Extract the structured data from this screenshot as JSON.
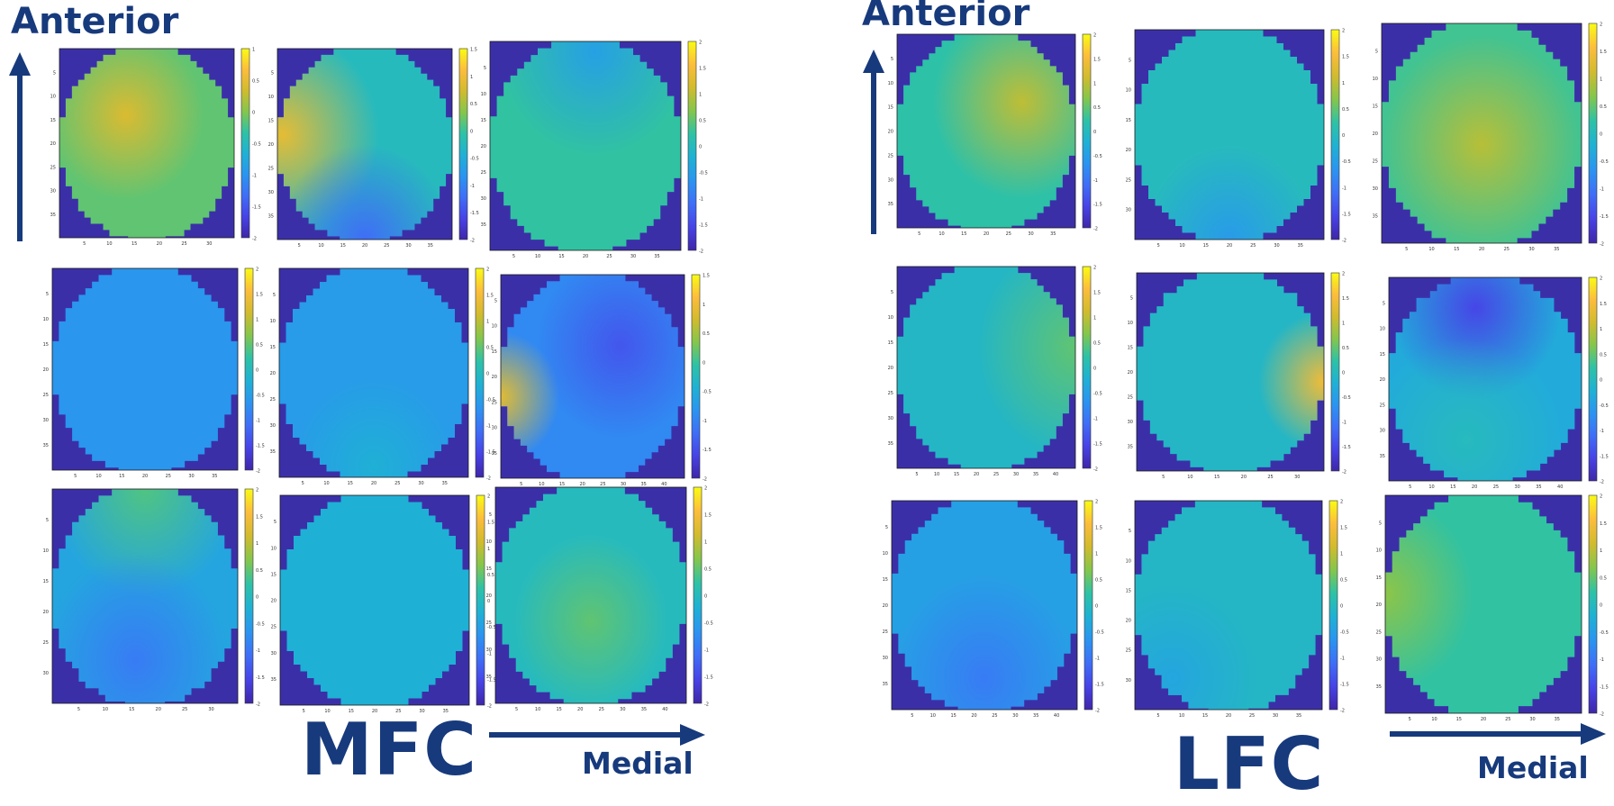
{
  "panels": [
    {
      "name": "MFC",
      "label": "MFC",
      "anterior_label": "Anterior",
      "medial_label": "Medial",
      "maps": [
        {
          "id": "mfc-r1c1",
          "colorbar_ticks": [
            "1",
            "0.5",
            "0",
            "-0.5",
            "-1",
            "-1.5",
            "-2"
          ],
          "base": 0.62,
          "blobs": [
            {
              "x": 0.38,
              "y": 0.35,
              "r": 0.45,
              "v": 0.18
            }
          ],
          "x_ticks": [
            "5",
            "10",
            "15",
            "20",
            "25",
            "30"
          ],
          "y_ticks": [
            "5",
            "10",
            "15",
            "20",
            "25",
            "30",
            "35"
          ]
        },
        {
          "id": "mfc-r1c2",
          "colorbar_ticks": [
            "1.5",
            "1",
            "0.5",
            "0",
            "-0.5",
            "-1",
            "-1.5",
            "-2"
          ],
          "base": 0.5,
          "blobs": [
            {
              "x": 0.03,
              "y": 0.45,
              "r": 0.55,
              "v": 0.33
            },
            {
              "x": 0.5,
              "y": 1.0,
              "r": 0.5,
              "v": -0.28
            }
          ],
          "x_ticks": [
            "5",
            "10",
            "15",
            "20",
            "25",
            "30",
            "35"
          ],
          "y_ticks": [
            "5",
            "10",
            "15",
            "20",
            "25",
            "30",
            "35"
          ]
        },
        {
          "id": "mfc-r1c3",
          "colorbar_ticks": [
            "2",
            "1.5",
            "1",
            "0.5",
            "0",
            "-0.5",
            "-1",
            "-1.5",
            "-2"
          ],
          "base": 0.56,
          "blobs": [
            {
              "x": 0.55,
              "y": 0.05,
              "r": 0.5,
              "v": -0.18
            }
          ],
          "x_ticks": [
            "5",
            "10",
            "15",
            "20",
            "25",
            "30",
            "35"
          ],
          "y_ticks": [
            "5",
            "10",
            "15",
            "20",
            "25",
            "30",
            "35"
          ]
        },
        {
          "id": "mfc-r2c1",
          "colorbar_ticks": [
            "2",
            "1.5",
            "1",
            "0.5",
            "0",
            "-0.5",
            "-1",
            "-1.5",
            "-2"
          ],
          "base": 0.34,
          "blobs": [],
          "x_ticks": [
            "5",
            "10",
            "15",
            "20",
            "25",
            "30",
            "35"
          ],
          "y_ticks": [
            "5",
            "10",
            "15",
            "20",
            "25",
            "30",
            "35"
          ]
        },
        {
          "id": "mfc-r2c2",
          "colorbar_ticks": [
            "2",
            "1.5",
            "1",
            "0.5",
            "0",
            "-0.5",
            "-1",
            "-1.5",
            "-2"
          ],
          "base": 0.36,
          "blobs": [
            {
              "x": 0.5,
              "y": 0.95,
              "r": 0.45,
              "v": 0.08
            }
          ],
          "x_ticks": [
            "5",
            "10",
            "15",
            "20",
            "25",
            "30",
            "35"
          ],
          "y_ticks": [
            "5",
            "10",
            "15",
            "20",
            "25",
            "30",
            "35"
          ]
        },
        {
          "id": "mfc-r2c3",
          "colorbar_ticks": [
            "1.5",
            "1",
            "0.5",
            "0",
            "-0.5",
            "-1",
            "-1.5",
            "-2"
          ],
          "base": 0.3,
          "blobs": [
            {
              "x": 0.0,
              "y": 0.6,
              "r": 0.32,
              "v": 0.52
            },
            {
              "x": 0.65,
              "y": 0.35,
              "r": 0.45,
              "v": -0.14
            }
          ],
          "x_ticks": [
            "5",
            "10",
            "15",
            "20",
            "25",
            "30",
            "35",
            "40"
          ],
          "y_ticks": [
            "5",
            "10",
            "15",
            "20",
            "25",
            "30",
            "35"
          ]
        },
        {
          "id": "mfc-r3c1",
          "colorbar_ticks": [
            "2",
            "1.5",
            "1",
            "0.5",
            "0",
            "-0.5",
            "-1",
            "-1.5",
            "-2"
          ],
          "base": 0.4,
          "blobs": [
            {
              "x": 0.5,
              "y": 0.0,
              "r": 0.5,
              "v": 0.2
            },
            {
              "x": 0.45,
              "y": 0.8,
              "r": 0.5,
              "v": -0.14
            }
          ],
          "x_ticks": [
            "5",
            "10",
            "15",
            "20",
            "25",
            "30"
          ],
          "y_ticks": [
            "5",
            "10",
            "15",
            "20",
            "25",
            "30"
          ]
        },
        {
          "id": "mfc-r3c2",
          "colorbar_ticks": [
            "2",
            "1.5",
            "1",
            "0.5",
            "0",
            "-0.5",
            "-1",
            "-1.5",
            "-2"
          ],
          "base": 0.44,
          "blobs": [],
          "x_ticks": [
            "5",
            "10",
            "15",
            "20",
            "25",
            "30",
            "35"
          ],
          "y_ticks": [
            "5",
            "10",
            "15",
            "20",
            "25",
            "30",
            "35"
          ]
        },
        {
          "id": "mfc-r3c3",
          "colorbar_ticks": [
            "2",
            "1.5",
            "1",
            "0.5",
            "0",
            "-0.5",
            "-1",
            "-1.5",
            "-2"
          ],
          "base": 0.5,
          "blobs": [
            {
              "x": 0.5,
              "y": 0.62,
              "r": 0.4,
              "v": 0.12
            }
          ],
          "x_ticks": [
            "5",
            "10",
            "15",
            "20",
            "25",
            "30",
            "35",
            "40"
          ],
          "y_ticks": [
            "5",
            "10",
            "15",
            "20",
            "25",
            "30",
            "35"
          ]
        }
      ]
    },
    {
      "name": "LFC",
      "label": "LFC",
      "anterior_label": "Anterior",
      "medial_label": "Medial",
      "maps": [
        {
          "id": "lfc-r1c1",
          "colorbar_ticks": [
            "2",
            "1.5",
            "1",
            "0.5",
            "0",
            "-0.5",
            "-1",
            "-1.5",
            "-2"
          ],
          "base": 0.55,
          "blobs": [
            {
              "x": 0.7,
              "y": 0.35,
              "r": 0.5,
              "v": 0.2
            }
          ],
          "x_ticks": [
            "5",
            "10",
            "15",
            "20",
            "25",
            "30",
            "35"
          ],
          "y_ticks": [
            "5",
            "10",
            "15",
            "20",
            "25",
            "30",
            "35"
          ]
        },
        {
          "id": "lfc-r1c2",
          "colorbar_ticks": [
            "2",
            "1.5",
            "1",
            "0.5",
            "0",
            "-0.5",
            "-1",
            "-1.5",
            "-2"
          ],
          "base": 0.5,
          "blobs": [
            {
              "x": 0.5,
              "y": 1.0,
              "r": 0.45,
              "v": -0.14
            }
          ],
          "x_ticks": [
            "5",
            "10",
            "15",
            "20",
            "25",
            "30",
            "35"
          ],
          "y_ticks": [
            "5",
            "10",
            "15",
            "20",
            "25",
            "30"
          ]
        },
        {
          "id": "lfc-r1c3",
          "colorbar_ticks": [
            "2",
            "1.5",
            "1",
            "0.5",
            "0",
            "-0.5",
            "-1",
            "-1.5",
            "-2"
          ],
          "base": 0.58,
          "blobs": [
            {
              "x": 0.5,
              "y": 0.55,
              "r": 0.5,
              "v": 0.16
            }
          ],
          "x_ticks": [
            "5",
            "10",
            "15",
            "20",
            "25",
            "30",
            "35"
          ],
          "y_ticks": [
            "5",
            "10",
            "15",
            "20",
            "25",
            "30",
            "35"
          ]
        },
        {
          "id": "lfc-r2c1",
          "colorbar_ticks": [
            "2",
            "1.5",
            "1",
            "0.5",
            "0",
            "-0.5",
            "-1",
            "-1.5",
            "-2"
          ],
          "base": 0.48,
          "blobs": [
            {
              "x": 1.0,
              "y": 0.4,
              "r": 0.55,
              "v": 0.14
            }
          ],
          "x_ticks": [
            "5",
            "10",
            "15",
            "20",
            "25",
            "30",
            "35",
            "40"
          ],
          "y_ticks": [
            "5",
            "10",
            "15",
            "20",
            "25",
            "30",
            "35"
          ]
        },
        {
          "id": "lfc-r2c2",
          "colorbar_ticks": [
            "2",
            "1.5",
            "1",
            "0.5",
            "0",
            "-0.5",
            "-1",
            "-1.5",
            "-2"
          ],
          "base": 0.48,
          "blobs": [
            {
              "x": 1.0,
              "y": 0.55,
              "r": 0.35,
              "v": 0.38
            }
          ],
          "x_ticks": [
            "5",
            "10",
            "15",
            "20",
            "25",
            "30"
          ],
          "y_ticks": [
            "5",
            "10",
            "15",
            "20",
            "25",
            "30",
            "35"
          ]
        },
        {
          "id": "lfc-r2c3",
          "colorbar_ticks": [
            "2",
            "1.5",
            "1",
            "0.5",
            "0",
            "-0.5",
            "-1",
            "-1.5",
            "-2"
          ],
          "base": 0.42,
          "blobs": [
            {
              "x": 0.45,
              "y": 0.15,
              "r": 0.45,
              "v": -0.3
            },
            {
              "x": 0.4,
              "y": 0.8,
              "r": 0.5,
              "v": 0.08
            }
          ],
          "x_ticks": [
            "5",
            "10",
            "15",
            "20",
            "25",
            "30",
            "35",
            "40"
          ],
          "y_ticks": [
            "5",
            "10",
            "15",
            "20",
            "25",
            "30",
            "35"
          ]
        },
        {
          "id": "lfc-r3c1",
          "colorbar_ticks": [
            "2",
            "1.5",
            "1",
            "0.5",
            "0",
            "-0.5",
            "-1",
            "-1.5",
            "-2"
          ],
          "base": 0.38,
          "blobs": [
            {
              "x": 0.5,
              "y": 0.85,
              "r": 0.5,
              "v": -0.12
            }
          ],
          "x_ticks": [
            "5",
            "10",
            "15",
            "20",
            "25",
            "30",
            "35",
            "40"
          ],
          "y_ticks": [
            "5",
            "10",
            "15",
            "20",
            "25",
            "30",
            "35"
          ]
        },
        {
          "id": "lfc-r3c2",
          "colorbar_ticks": [
            "2",
            "1.5",
            "1",
            "0.5",
            "0",
            "-0.5",
            "-1",
            "-1.5",
            "-2"
          ],
          "base": 0.48,
          "blobs": [
            {
              "x": 0.2,
              "y": 0.85,
              "r": 0.45,
              "v": -0.08
            }
          ],
          "x_ticks": [
            "5",
            "10",
            "15",
            "20",
            "25",
            "30",
            "35"
          ],
          "y_ticks": [
            "5",
            "10",
            "15",
            "20",
            "25",
            "30"
          ]
        },
        {
          "id": "lfc-r3c3",
          "colorbar_ticks": [
            "2",
            "1.5",
            "1",
            "0.5",
            "0",
            "-0.5",
            "-1",
            "-1.5",
            "-2"
          ],
          "base": 0.56,
          "blobs": [
            {
              "x": 0.0,
              "y": 0.45,
              "r": 0.45,
              "v": 0.12
            }
          ],
          "x_ticks": [
            "5",
            "10",
            "15",
            "20",
            "25",
            "30",
            "35"
          ],
          "y_ticks": [
            "5",
            "10",
            "15",
            "20",
            "25",
            "30",
            "35"
          ]
        }
      ]
    }
  ],
  "colors": {
    "label": "#173a7c",
    "outside_mask": "#3b2fa8",
    "colormap": [
      "#3e26a8",
      "#4743e6",
      "#3f6ef7",
      "#2b94f0",
      "#1fb1d4",
      "#2ec2a6",
      "#84c64c",
      "#d1bb2e",
      "#fcbd3c",
      "#f9fb14"
    ]
  }
}
